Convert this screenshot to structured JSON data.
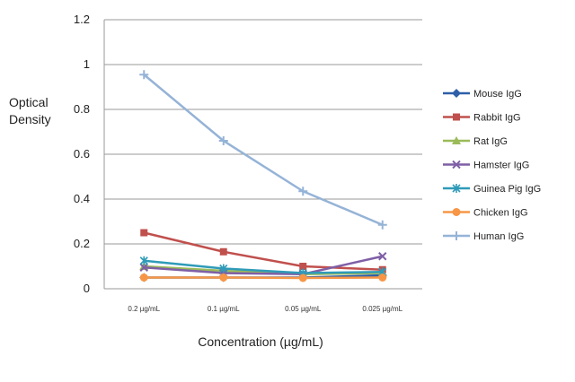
{
  "chart_data": {
    "type": "line",
    "categories": [
      "0.2 µg/mL",
      "0.1 µg/mL",
      "0.05 µg/mL",
      "0.025 µg/mL"
    ],
    "ylim": [
      0,
      1.2
    ],
    "yticks": [
      "0",
      "0.2",
      "0.4",
      "0.6",
      "0.8",
      "1",
      "1.2"
    ],
    "ylabel": [
      "Optical",
      "Density"
    ],
    "xlabel": "Concentration (µg/mL)",
    "grid": true,
    "legend_position": "right",
    "series": [
      {
        "name": "Mouse IgG",
        "color": "#2E5FA8",
        "marker": "diamond",
        "values": [
          0.05,
          0.05,
          0.05,
          0.06
        ]
      },
      {
        "name": "Rabbit IgG",
        "color": "#C0504D",
        "marker": "square",
        "values": [
          0.25,
          0.165,
          0.1,
          0.085
        ]
      },
      {
        "name": "Rat IgG",
        "color": "#9BBB59",
        "marker": "triangle",
        "values": [
          0.1,
          0.08,
          0.065,
          0.07
        ]
      },
      {
        "name": "Hamster IgG",
        "color": "#7F5FA6",
        "marker": "x",
        "values": [
          0.095,
          0.07,
          0.065,
          0.145
        ]
      },
      {
        "name": "Guinea Pig IgG",
        "color": "#2F9BB8",
        "marker": "star",
        "values": [
          0.125,
          0.09,
          0.07,
          0.075
        ]
      },
      {
        "name": "Chicken IgG",
        "color": "#F79646",
        "marker": "circle",
        "values": [
          0.05,
          0.05,
          0.048,
          0.05
        ]
      },
      {
        "name": "Human IgG",
        "color": "#95B3D7",
        "marker": "plus",
        "values": [
          0.955,
          0.66,
          0.435,
          0.285
        ]
      }
    ]
  }
}
